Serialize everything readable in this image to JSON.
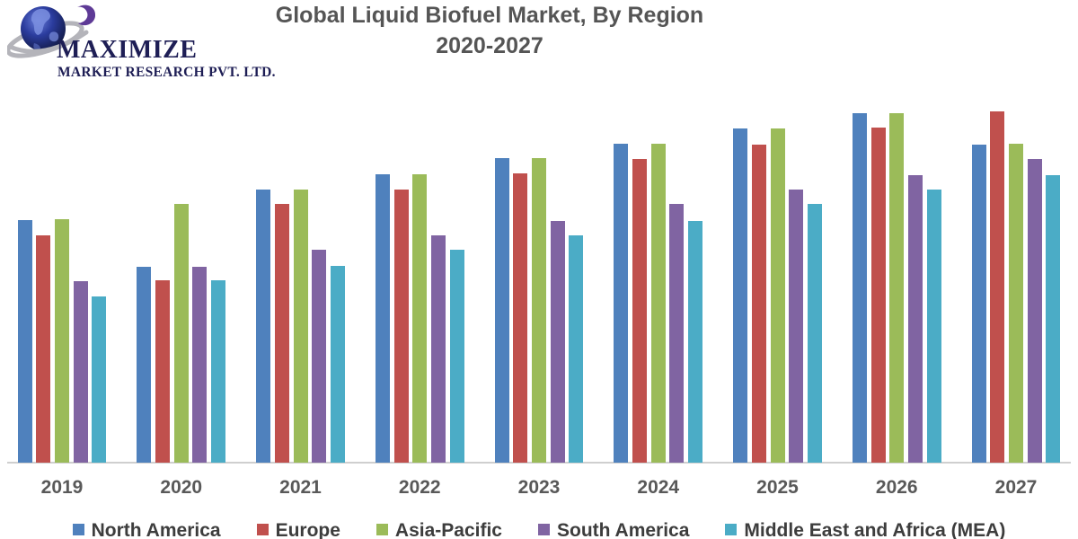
{
  "brand": {
    "name": "MAXIMIZE",
    "subtitle": "MARKET RESEARCH PVT. LTD."
  },
  "title": {
    "line1": "Global Liquid Biofuel Market, By Region",
    "line2": "2020-2027"
  },
  "chart_data": {
    "type": "bar",
    "title": "Global Liquid Biofuel Market, By Region 2020-2027",
    "xlabel": "",
    "ylabel": "",
    "y_axis_visible": false,
    "unit": "relative bar height in screen px (chart displays no value axis)",
    "grid": false,
    "legend_position": "bottom",
    "categories": [
      "2019",
      "2020",
      "2021",
      "2022",
      "2023",
      "2024",
      "2025",
      "2026",
      "2027"
    ],
    "series": [
      {
        "name": "North America",
        "color": "#4f81bd",
        "values": [
          270,
          218,
          304,
          321,
          339,
          355,
          372,
          389,
          354
        ]
      },
      {
        "name": "Europe",
        "color": "#c0504d",
        "values": [
          253,
          203,
          288,
          304,
          322,
          338,
          354,
          373,
          391
        ]
      },
      {
        "name": "Asia-Pacific",
        "color": "#9bbb59",
        "values": [
          271,
          288,
          304,
          321,
          339,
          355,
          372,
          389,
          355
        ]
      },
      {
        "name": "South America",
        "color": "#8064a2",
        "values": [
          202,
          218,
          237,
          253,
          269,
          288,
          304,
          320,
          338
        ]
      },
      {
        "name": "Middle East and Africa (MEA)",
        "color": "#4bacc6",
        "values": [
          185,
          203,
          219,
          237,
          253,
          269,
          288,
          304,
          320
        ]
      }
    ],
    "ylim": [
      0,
      415
    ]
  },
  "logo_colors": {
    "globe_dark": "#141c5e",
    "globe_mid": "#2b3c9e",
    "globe_light": "#6b80da",
    "ring_silver": "#b4b4ba",
    "comma_purple": "#5e3a96",
    "text_navy": "#1e1e55"
  }
}
